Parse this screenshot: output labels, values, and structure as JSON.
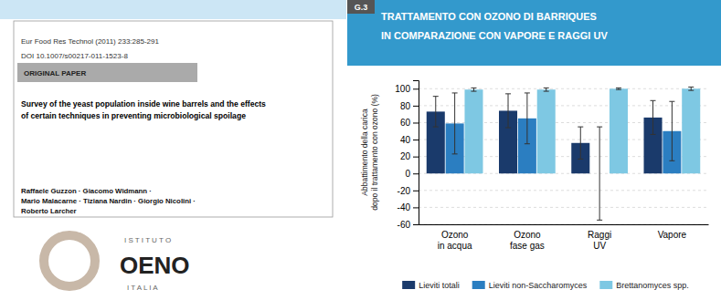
{
  "chart_data": {
    "type": "bar",
    "title": "TRATTAMENTO CON OZONO DI BARRIQUES\nIN COMPARAZIONE CON VAPORE E RAGGI UV",
    "ylabel": "Abbattimento della carica\ndopo il trattamento con ozono (%)",
    "categories": [
      "Ozono\nin acqua",
      "Ozono\nfase gas",
      "Raggi\nUV",
      "Vapore"
    ],
    "series": [
      {
        "name": "Lieviti totali",
        "color": "#1a3a6b",
        "values": [
          73,
          74,
          36,
          66
        ],
        "errors": [
          18,
          20,
          19,
          20
        ]
      },
      {
        "name": "Lieviti non-Saccharomyces",
        "color": "#2b7ec1",
        "values": [
          59,
          65,
          0,
          50
        ],
        "errors": [
          36,
          30,
          55,
          35
        ]
      },
      {
        "name": "Brettanomyces spp.",
        "color": "#7ec8e3",
        "values": [
          99,
          99,
          100,
          100
        ],
        "errors": [
          2,
          2,
          1,
          2
        ]
      }
    ],
    "ylim": [
      -60,
      110
    ],
    "yticks": [
      -60,
      -40,
      -20,
      0,
      20,
      40,
      60,
      80,
      100
    ],
    "grid": true,
    "legend": "bottom",
    "annotations": [
      "G.3",
      "Eur Food Res Technol (2011) 233:285-291",
      "DOI 10.1007/s00217-011-1523-8",
      "ORIGINAL PAPER",
      "Survey of the yeast population inside wine barrels and the effects\nof certain techniques in preventing microbiological spoilage",
      "Raffaele Guzzon · Giacomo Widmann ·\nMario Malacarne · Tiziana Nardin · Giorgio Nicolini ·\nRoberto Larcher",
      "I S T I T U T O",
      "OENO",
      "I T A L I A"
    ]
  }
}
